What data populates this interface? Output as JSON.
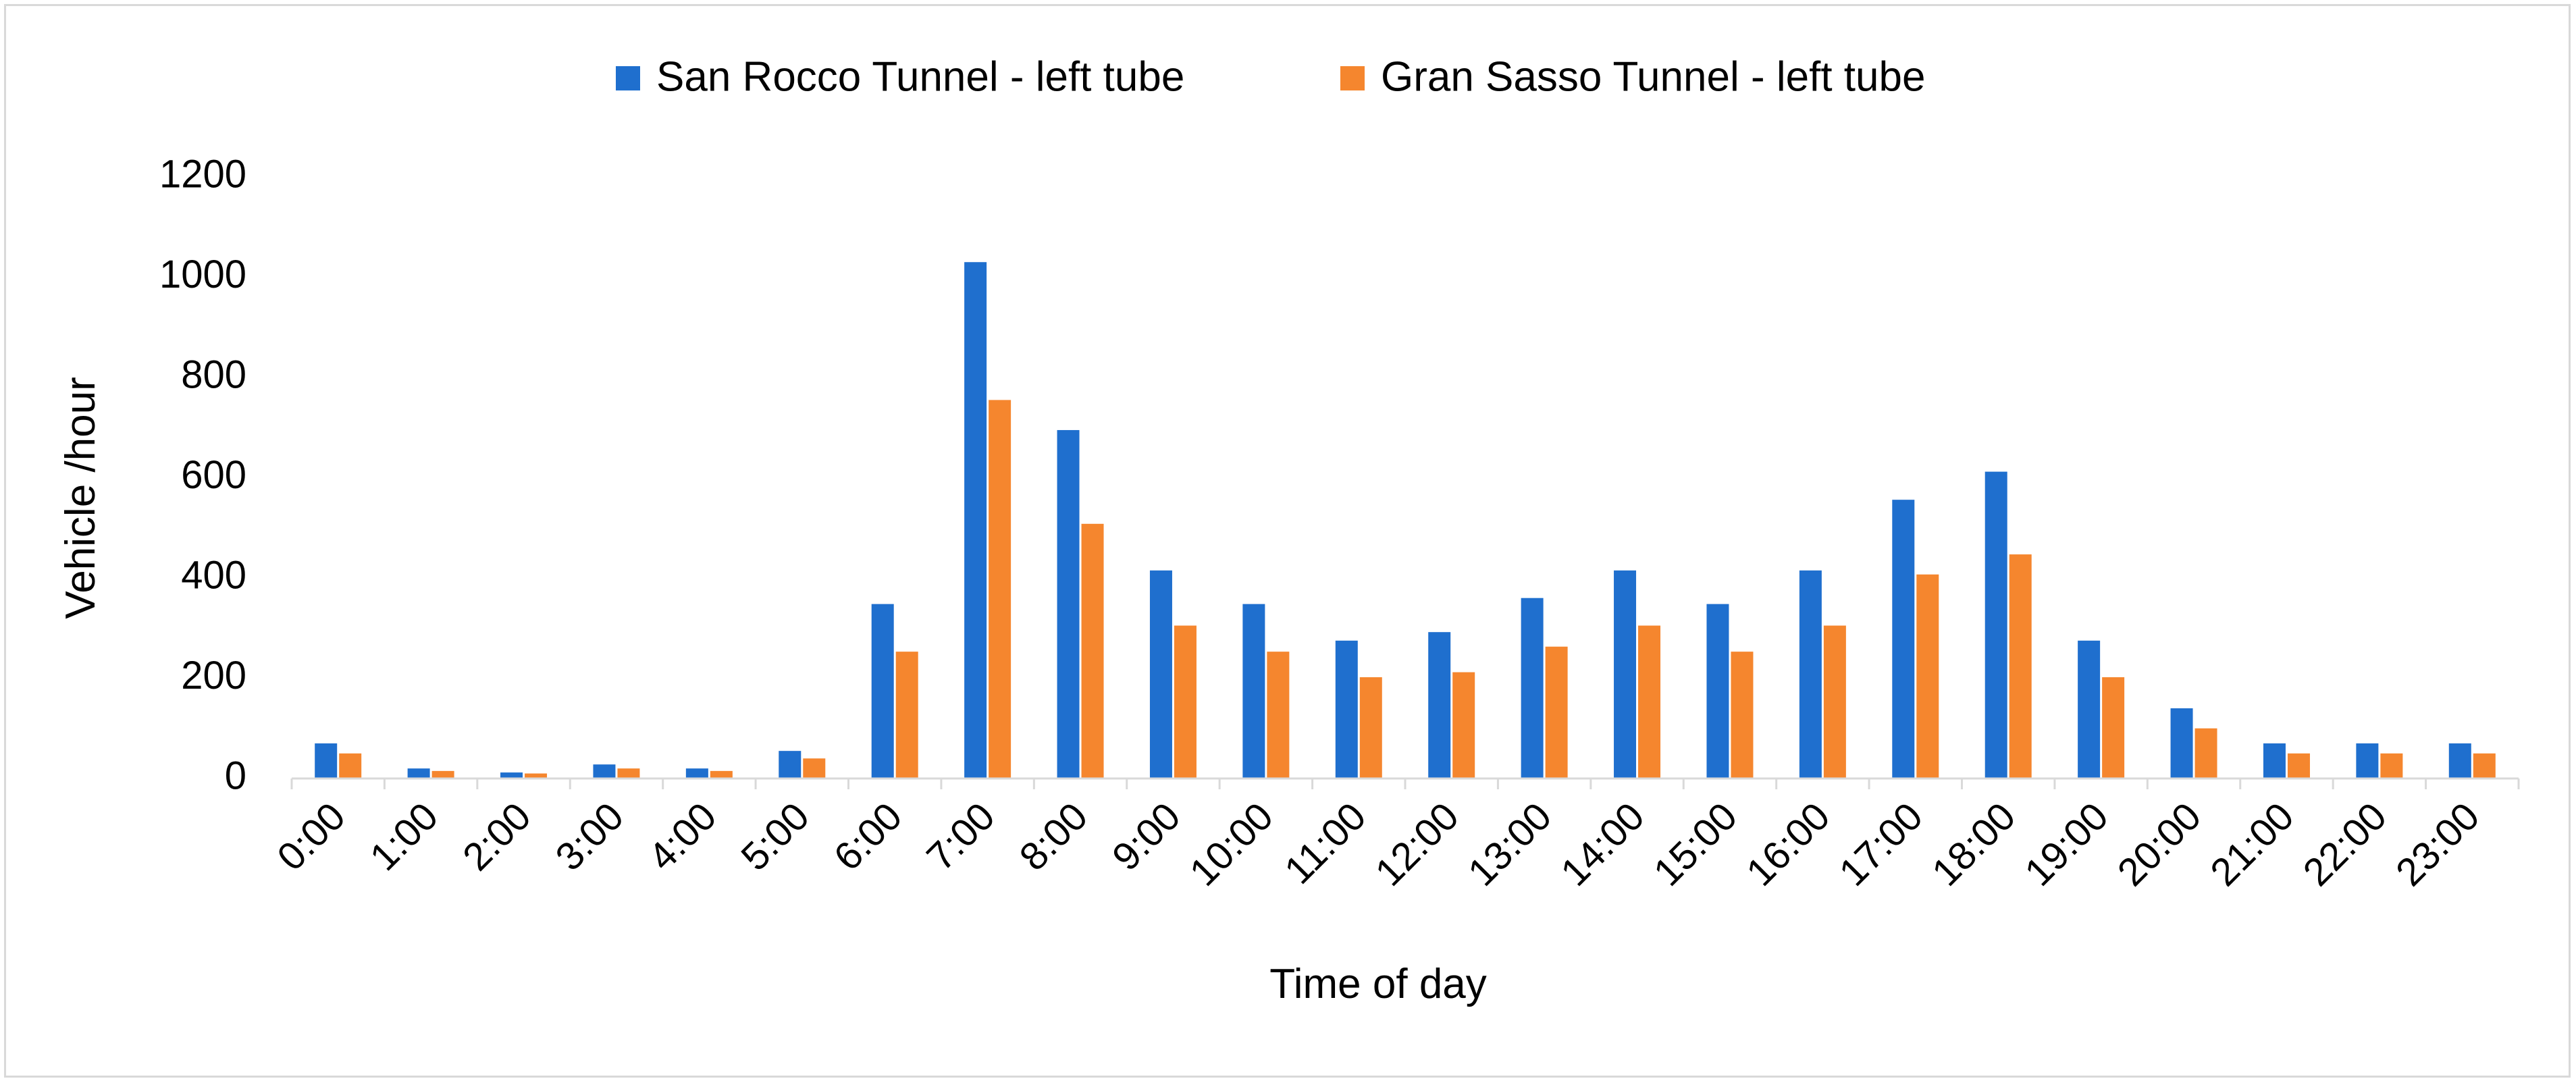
{
  "chart_data": {
    "type": "bar",
    "title": "",
    "xlabel": "Time of day",
    "ylabel": "Vehicle /hour",
    "ylim": [
      0,
      1200
    ],
    "yticks": [
      0,
      200,
      400,
      600,
      800,
      1000,
      1200
    ],
    "grid": false,
    "legend_position": "top",
    "categories": [
      "0:00",
      "1:00",
      "2:00",
      "3:00",
      "4:00",
      "5:00",
      "6:00",
      "7:00",
      "8:00",
      "9:00",
      "10:00",
      "11:00",
      "12:00",
      "13:00",
      "14:00",
      "15:00",
      "16:00",
      "17:00",
      "18:00",
      "19:00",
      "20:00",
      "21:00",
      "22:00",
      "23:00"
    ],
    "series": [
      {
        "name": "San Rocco Tunnel - left tube",
        "color": "#1f6fce",
        "values": [
          70,
          20,
          12,
          28,
          20,
          55,
          348,
          1030,
          695,
          415,
          348,
          275,
          292,
          360,
          415,
          348,
          415,
          556,
          612,
          275,
          140,
          70,
          70,
          70
        ]
      },
      {
        "name": "Gran Sasso Tunnel - left tube",
        "color": "#f5862e",
        "values": [
          50,
          15,
          10,
          20,
          15,
          40,
          253,
          755,
          508,
          305,
          253,
          202,
          212,
          263,
          305,
          253,
          305,
          407,
          447,
          202,
          100,
          50,
          50,
          50
        ]
      }
    ]
  }
}
